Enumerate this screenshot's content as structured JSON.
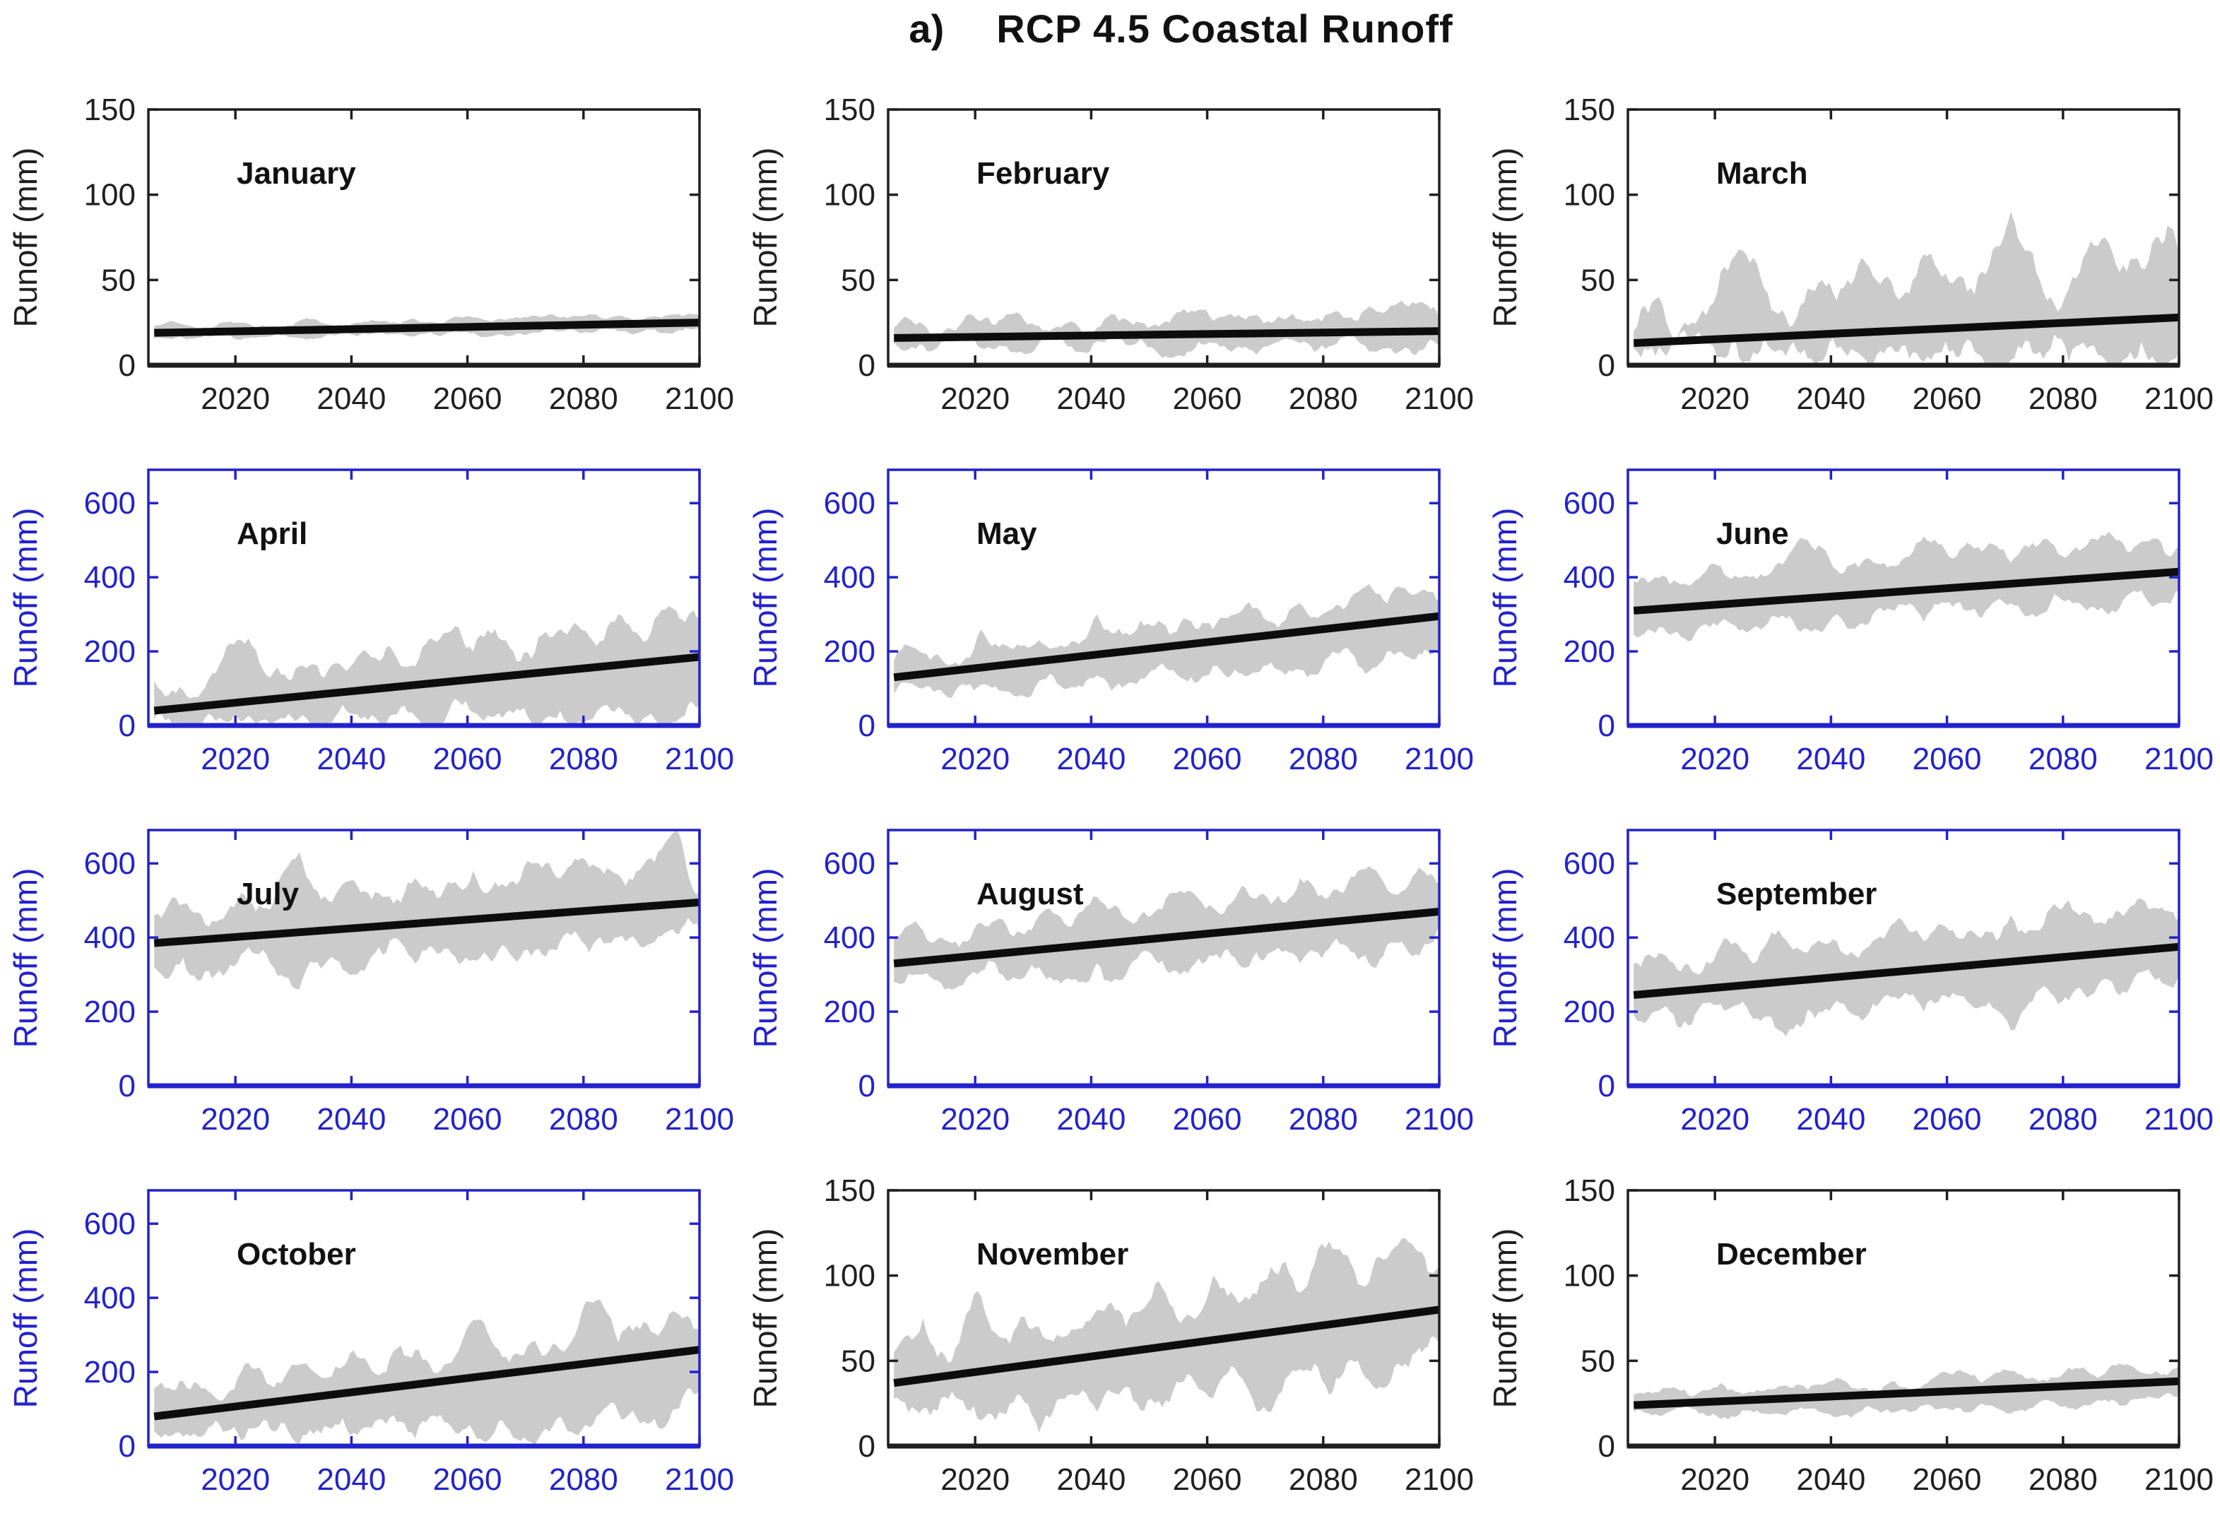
{
  "title": {
    "prefix": "a)",
    "text": "RCP 4.5 Coastal Runoff"
  },
  "colors": {
    "blue_axis": "#2222cc",
    "black_axis": "#1f1f1f",
    "band": "#cbcbcb",
    "trend": "#0d0d0d",
    "month_label": "#111111",
    "background": "#ffffff"
  },
  "axis": {
    "ylabel": "Runoff (mm)",
    "x_start": 2005,
    "x_end": 2100,
    "xticks": [
      2020,
      2040,
      2060,
      2080,
      2100
    ]
  },
  "chart_data": [
    {
      "month": "January",
      "type": "area+line",
      "axis_color": "black",
      "ylim": [
        0,
        150
      ],
      "yticks": [
        0,
        50,
        100,
        150
      ],
      "trend": {
        "x": [
          2006,
          2100
        ],
        "y": [
          19,
          25
        ]
      },
      "noise": 2.5,
      "band_years": [
        2006,
        2011,
        2016,
        2021,
        2026,
        2031,
        2036,
        2041,
        2046,
        2051,
        2056,
        2061,
        2066,
        2071,
        2076,
        2081,
        2086,
        2091,
        2096,
        2100
      ],
      "band_lower": [
        16,
        16,
        17,
        15,
        17,
        16,
        18,
        17,
        18,
        17,
        18,
        19,
        18,
        19,
        20,
        19,
        20,
        21,
        20,
        21
      ],
      "band_upper": [
        23,
        24,
        22,
        25,
        23,
        26,
        24,
        25,
        26,
        27,
        25,
        28,
        27,
        29,
        28,
        30,
        29,
        28,
        30,
        29
      ]
    },
    {
      "month": "February",
      "type": "area+line",
      "axis_color": "black",
      "ylim": [
        0,
        150
      ],
      "yticks": [
        0,
        50,
        100,
        150
      ],
      "trend": {
        "x": [
          2006,
          2100
        ],
        "y": [
          16,
          20
        ]
      },
      "noise": 6,
      "band_years": [
        2006,
        2011,
        2016,
        2021,
        2026,
        2031,
        2036,
        2041,
        2046,
        2051,
        2056,
        2061,
        2066,
        2071,
        2076,
        2081,
        2086,
        2091,
        2096,
        2100
      ],
      "band_lower": [
        13,
        12,
        14,
        10,
        8,
        13,
        11,
        14,
        12,
        9,
        5,
        13,
        10,
        12,
        13,
        11,
        14,
        10,
        6,
        12
      ],
      "band_upper": [
        22,
        24,
        21,
        26,
        30,
        23,
        25,
        22,
        27,
        24,
        33,
        26,
        28,
        25,
        27,
        30,
        26,
        32,
        36,
        28
      ]
    },
    {
      "month": "March",
      "type": "area+line",
      "axis_color": "black",
      "ylim": [
        0,
        150
      ],
      "yticks": [
        0,
        50,
        100,
        150
      ],
      "trend": {
        "x": [
          2006,
          2100
        ],
        "y": [
          13,
          28
        ]
      },
      "noise": 14,
      "band_years": [
        2006,
        2011,
        2016,
        2021,
        2026,
        2031,
        2036,
        2041,
        2046,
        2051,
        2056,
        2061,
        2066,
        2071,
        2076,
        2081,
        2086,
        2091,
        2096,
        2100
      ],
      "band_lower": [
        10,
        8,
        12,
        5,
        2,
        9,
        4,
        10,
        3,
        8,
        2,
        9,
        5,
        3,
        8,
        2,
        6,
        4,
        2,
        8
      ],
      "band_upper": [
        20,
        35,
        25,
        55,
        60,
        30,
        45,
        38,
        60,
        42,
        65,
        48,
        55,
        90,
        50,
        45,
        70,
        55,
        75,
        65
      ]
    },
    {
      "month": "April",
      "type": "area+line",
      "axis_color": "blue",
      "ylim": [
        0,
        690
      ],
      "yticks": [
        0,
        200,
        400,
        600
      ],
      "trend": {
        "x": [
          2006,
          2100
        ],
        "y": [
          40,
          185
        ]
      },
      "noise": 45,
      "band_years": [
        2006,
        2011,
        2016,
        2021,
        2026,
        2031,
        2036,
        2041,
        2046,
        2051,
        2056,
        2061,
        2066,
        2071,
        2076,
        2081,
        2086,
        2091,
        2096,
        2100
      ],
      "band_lower": [
        15,
        5,
        25,
        10,
        2,
        20,
        8,
        30,
        5,
        25,
        10,
        35,
        20,
        8,
        40,
        15,
        50,
        25,
        10,
        60
      ],
      "band_upper": [
        120,
        95,
        140,
        230,
        130,
        160,
        150,
        185,
        210,
        160,
        250,
        200,
        230,
        180,
        260,
        240,
        300,
        230,
        310,
        290
      ]
    },
    {
      "month": "May",
      "type": "area+line",
      "axis_color": "blue",
      "ylim": [
        0,
        690
      ],
      "yticks": [
        0,
        200,
        400,
        600
      ],
      "trend": {
        "x": [
          2006,
          2100
        ],
        "y": [
          130,
          295
        ]
      },
      "noise": 35,
      "band_years": [
        2006,
        2011,
        2016,
        2021,
        2026,
        2031,
        2036,
        2041,
        2046,
        2051,
        2056,
        2061,
        2066,
        2071,
        2076,
        2081,
        2086,
        2091,
        2096,
        2100
      ],
      "band_lower": [
        85,
        100,
        75,
        110,
        90,
        120,
        100,
        135,
        110,
        150,
        125,
        160,
        140,
        170,
        150,
        185,
        160,
        200,
        180,
        215
      ],
      "band_upper": [
        175,
        195,
        165,
        260,
        210,
        230,
        215,
        300,
        250,
        270,
        290,
        260,
        310,
        280,
        330,
        310,
        360,
        330,
        355,
        340
      ]
    },
    {
      "month": "June",
      "type": "area+line",
      "axis_color": "blue",
      "ylim": [
        0,
        690
      ],
      "yticks": [
        0,
        200,
        400,
        600
      ],
      "trend": {
        "x": [
          2006,
          2100
        ],
        "y": [
          310,
          415
        ]
      },
      "noise": 35,
      "band_years": [
        2006,
        2011,
        2016,
        2021,
        2026,
        2031,
        2036,
        2041,
        2046,
        2051,
        2056,
        2061,
        2066,
        2071,
        2076,
        2081,
        2086,
        2091,
        2096,
        2100
      ],
      "band_lower": [
        245,
        265,
        230,
        280,
        255,
        290,
        260,
        300,
        270,
        310,
        280,
        320,
        290,
        330,
        300,
        340,
        310,
        350,
        325,
        360
      ],
      "band_upper": [
        390,
        405,
        380,
        430,
        400,
        440,
        500,
        420,
        450,
        430,
        510,
        450,
        470,
        440,
        490,
        460,
        500,
        470,
        505,
        480
      ]
    },
    {
      "month": "July",
      "type": "area+line",
      "axis_color": "blue",
      "ylim": [
        0,
        690
      ],
      "yticks": [
        0,
        200,
        400,
        600
      ],
      "trend": {
        "x": [
          2006,
          2100
        ],
        "y": [
          385,
          495
        ]
      },
      "noise": 45,
      "band_years": [
        2006,
        2011,
        2016,
        2021,
        2026,
        2031,
        2036,
        2041,
        2046,
        2051,
        2056,
        2061,
        2066,
        2071,
        2076,
        2081,
        2086,
        2091,
        2096,
        2100
      ],
      "band_lower": [
        320,
        345,
        290,
        355,
        330,
        260,
        340,
        300,
        360,
        330,
        370,
        340,
        380,
        350,
        390,
        360,
        400,
        380,
        410,
        420
      ],
      "band_upper": [
        460,
        490,
        445,
        520,
        475,
        630,
        500,
        540,
        510,
        560,
        530,
        580,
        545,
        600,
        560,
        590,
        570,
        610,
        690,
        530
      ]
    },
    {
      "month": "August",
      "type": "area+line",
      "axis_color": "blue",
      "ylim": [
        0,
        690
      ],
      "yticks": [
        0,
        200,
        400,
        600
      ],
      "trend": {
        "x": [
          2006,
          2100
        ],
        "y": [
          330,
          470
        ]
      },
      "noise": 40,
      "band_years": [
        2006,
        2011,
        2016,
        2021,
        2026,
        2031,
        2036,
        2041,
        2046,
        2051,
        2056,
        2061,
        2066,
        2071,
        2076,
        2081,
        2086,
        2091,
        2096,
        2100
      ],
      "band_lower": [
        280,
        300,
        260,
        310,
        285,
        320,
        290,
        330,
        300,
        340,
        310,
        350,
        320,
        360,
        330,
        370,
        340,
        380,
        355,
        430
      ],
      "band_upper": [
        400,
        420,
        385,
        440,
        410,
        460,
        430,
        510,
        450,
        470,
        520,
        480,
        540,
        490,
        560,
        510,
        580,
        530,
        575,
        545
      ]
    },
    {
      "month": "September",
      "type": "area+line",
      "axis_color": "blue",
      "ylim": [
        0,
        690
      ],
      "yticks": [
        0,
        200,
        400,
        600
      ],
      "trend": {
        "x": [
          2006,
          2100
        ],
        "y": [
          245,
          375
        ]
      },
      "noise": 40,
      "band_years": [
        2006,
        2011,
        2016,
        2021,
        2026,
        2031,
        2036,
        2041,
        2046,
        2051,
        2056,
        2061,
        2066,
        2071,
        2076,
        2081,
        2086,
        2091,
        2096,
        2100
      ],
      "band_lower": [
        190,
        210,
        165,
        220,
        195,
        150,
        205,
        230,
        185,
        240,
        200,
        250,
        215,
        150,
        260,
        230,
        270,
        250,
        285,
        300
      ],
      "band_upper": [
        330,
        355,
        310,
        380,
        340,
        420,
        360,
        390,
        370,
        440,
        390,
        420,
        400,
        460,
        420,
        500,
        440,
        470,
        480,
        450
      ]
    },
    {
      "month": "October",
      "type": "area+line",
      "axis_color": "blue",
      "ylim": [
        0,
        690
      ],
      "yticks": [
        0,
        200,
        400,
        600
      ],
      "trend": {
        "x": [
          2006,
          2100
        ],
        "y": [
          80,
          260
        ]
      },
      "noise": 45,
      "band_years": [
        2006,
        2011,
        2016,
        2021,
        2026,
        2031,
        2036,
        2041,
        2046,
        2051,
        2056,
        2061,
        2066,
        2071,
        2076,
        2081,
        2086,
        2091,
        2096,
        2100
      ],
      "band_lower": [
        40,
        25,
        55,
        15,
        45,
        5,
        50,
        30,
        60,
        20,
        65,
        40,
        70,
        10,
        80,
        50,
        90,
        60,
        100,
        150
      ],
      "band_upper": [
        155,
        175,
        140,
        200,
        165,
        220,
        185,
        240,
        200,
        260,
        220,
        340,
        240,
        280,
        260,
        390,
        280,
        330,
        360,
        310
      ]
    },
    {
      "month": "November",
      "type": "area+line",
      "axis_color": "black",
      "ylim": [
        0,
        150
      ],
      "yticks": [
        0,
        50,
        100,
        150
      ],
      "trend": {
        "x": [
          2006,
          2100
        ],
        "y": [
          37,
          80
        ]
      },
      "noise": 11,
      "band_years": [
        2006,
        2011,
        2016,
        2021,
        2026,
        2031,
        2036,
        2041,
        2046,
        2051,
        2056,
        2061,
        2066,
        2071,
        2076,
        2081,
        2086,
        2091,
        2096,
        2100
      ],
      "band_lower": [
        28,
        22,
        32,
        15,
        25,
        8,
        30,
        20,
        35,
        25,
        38,
        28,
        40,
        20,
        45,
        30,
        50,
        35,
        55,
        60
      ],
      "band_upper": [
        55,
        75,
        50,
        88,
        60,
        70,
        65,
        80,
        70,
        95,
        75,
        100,
        85,
        105,
        90,
        120,
        95,
        110,
        115,
        105
      ]
    },
    {
      "month": "December",
      "type": "area+line",
      "axis_color": "black",
      "ylim": [
        0,
        150
      ],
      "yticks": [
        0,
        50,
        100,
        150
      ],
      "trend": {
        "x": [
          2006,
          2100
        ],
        "y": [
          24,
          38
        ]
      },
      "noise": 4,
      "band_years": [
        2006,
        2011,
        2016,
        2021,
        2026,
        2031,
        2036,
        2041,
        2046,
        2051,
        2056,
        2061,
        2066,
        2071,
        2076,
        2081,
        2086,
        2091,
        2096,
        2100
      ],
      "band_lower": [
        20,
        18,
        22,
        16,
        21,
        19,
        22,
        17,
        23,
        20,
        24,
        21,
        25,
        19,
        26,
        22,
        27,
        24,
        28,
        30
      ],
      "band_upper": [
        30,
        34,
        29,
        37,
        32,
        35,
        33,
        40,
        34,
        38,
        36,
        42,
        37,
        44,
        38,
        46,
        40,
        48,
        44,
        47
      ]
    }
  ]
}
